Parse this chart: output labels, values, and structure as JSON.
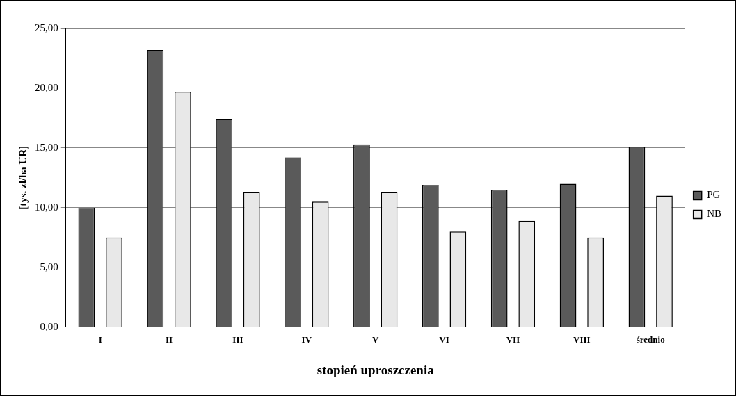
{
  "chart_data": {
    "type": "bar",
    "xlabel": "stopień uproszczenia",
    "ylabel": "[tys. zł/ha UR]",
    "categories": [
      "I",
      "II",
      "III",
      "IV",
      "V",
      "VI",
      "VII",
      "VIII",
      "średnio"
    ],
    "series": [
      {
        "name": "PG",
        "color": "#5a5a5a",
        "values": [
          10.0,
          23.2,
          17.4,
          14.2,
          15.3,
          11.9,
          11.5,
          12.0,
          15.1
        ]
      },
      {
        "name": "NB",
        "color": "#e8e8e8",
        "values": [
          7.5,
          19.7,
          11.3,
          10.5,
          11.3,
          8.0,
          8.9,
          7.5,
          11.0
        ]
      }
    ],
    "ylim": [
      0,
      25
    ],
    "yticks": [
      {
        "value": 0,
        "label": "0,00"
      },
      {
        "value": 5,
        "label": "5,00"
      },
      {
        "value": 10,
        "label": "10,00"
      },
      {
        "value": 15,
        "label": "15,00"
      },
      {
        "value": 20,
        "label": "20,00"
      },
      {
        "value": 25,
        "label": "25,00"
      }
    ],
    "grid": "y",
    "legend": "right"
  }
}
